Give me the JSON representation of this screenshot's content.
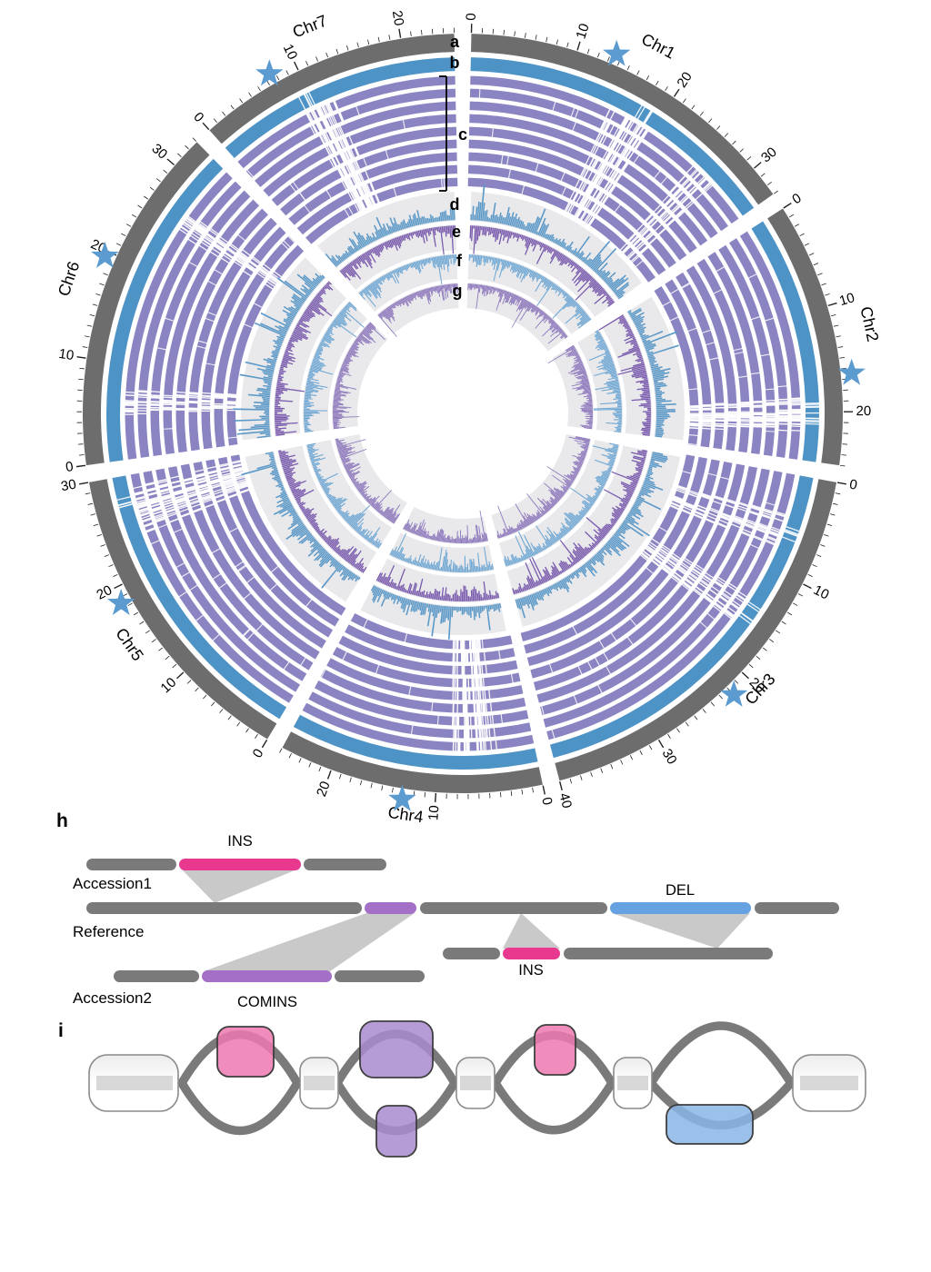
{
  "colors": {
    "ideogram": "#6d6d6d",
    "ring_b": "#4e93c6",
    "ring_c": "#8a85c2",
    "hist_d": "#5c99c7",
    "hist_e": "#7a5bad",
    "hist_f": "#6fa7d3",
    "hist_g": "#8a74ba",
    "track_bg": "#e9e9ec",
    "star": "#5b9bd0",
    "tick": "#222222",
    "seg": "#7a7a7a",
    "ins": "#e8398f",
    "del": "#66a1e1",
    "comins": "#a46fc6",
    "link": "#c9c9c9",
    "node_pink": "#ee79b0",
    "node_purple": "#a98bd0",
    "node_blue": "#8ab6e8",
    "path": "#7a7a7a",
    "refbar": "#c9c9c9"
  },
  "circos": {
    "track_labels": [
      "a",
      "b",
      "c",
      "d",
      "e",
      "f",
      "g"
    ],
    "c_ring_count": 9,
    "major_tick_mb": 10,
    "minor_tick_mb": 1,
    "tick_labels_mb": [
      0,
      10,
      20,
      30,
      40
    ],
    "chromosomes": [
      {
        "name": "Chr1",
        "size_mb": 33,
        "star_mb": 13.5,
        "sv_hotspots_mb": [
          16.5,
          18.5,
          27
        ]
      },
      {
        "name": "Chr2",
        "size_mb": 25,
        "star_mb": 16.5,
        "sv_hotspots_mb": [
          19.5,
          21
        ]
      },
      {
        "name": "Chr3",
        "size_mb": 40,
        "star_mb": 22,
        "sv_hotspots_mb": [
          6,
          15
        ]
      },
      {
        "name": "Chr4",
        "size_mb": 25,
        "star_mb": 13,
        "sv_hotspots_mb": [
          5,
          7.5
        ]
      },
      {
        "name": "Chr5",
        "size_mb": 30,
        "star_mb": 18.5,
        "sv_hotspots_mb": [
          25,
          27.5
        ]
      },
      {
        "name": "Chr6",
        "size_mb": 33,
        "star_mb": 19.5,
        "sv_hotspots_mb": [
          6,
          26
        ]
      },
      {
        "name": "Chr7",
        "size_mb": 25,
        "star_mb": 7.5,
        "sv_hotspots_mb": [
          9.5,
          11
        ]
      }
    ]
  },
  "panel_h": {
    "label": "h",
    "row_labels": [
      "Accession1",
      "Reference",
      "Accession2"
    ],
    "labels": {
      "ins1": "INS",
      "del": "DEL",
      "ins2": "INS",
      "comins": "COMINS"
    }
  },
  "panel_i": {
    "label": "i"
  }
}
